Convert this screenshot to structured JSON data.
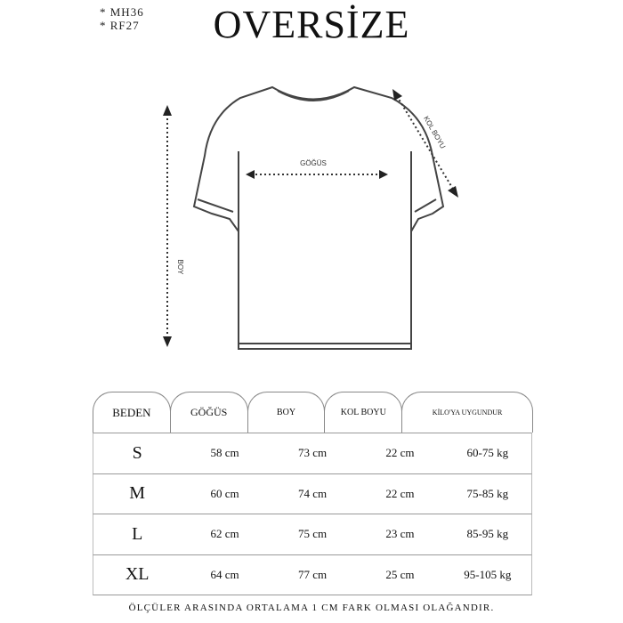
{
  "codes": [
    "* MH36",
    "* RF27"
  ],
  "title": "OVERSİZE",
  "diagram": {
    "chest": "GÖĞÜS",
    "sleeve": "KOL BOYU",
    "length": "BOY"
  },
  "table": {
    "headers": [
      "BEDEN",
      "GÖĞÜS",
      "BOY",
      "KOL BOYU",
      "KİLO'YA UYGUNDUR"
    ],
    "rows": [
      [
        "S",
        "58 cm",
        "73 cm",
        "22  cm",
        "60-75 kg"
      ],
      [
        "M",
        "60 cm",
        "74 cm",
        "22 cm",
        "75-85 kg"
      ],
      [
        "L",
        "62 cm",
        "75 cm",
        "23 cm",
        "85-95 kg"
      ],
      [
        "XL",
        "64 cm",
        "77 cm",
        "25 cm",
        "95-105 kg"
      ]
    ]
  },
  "footer": "ÖLÇÜLER ARASINDA ORTALAMA 1 CM FARK OLMASI OLAĞANDIR."
}
